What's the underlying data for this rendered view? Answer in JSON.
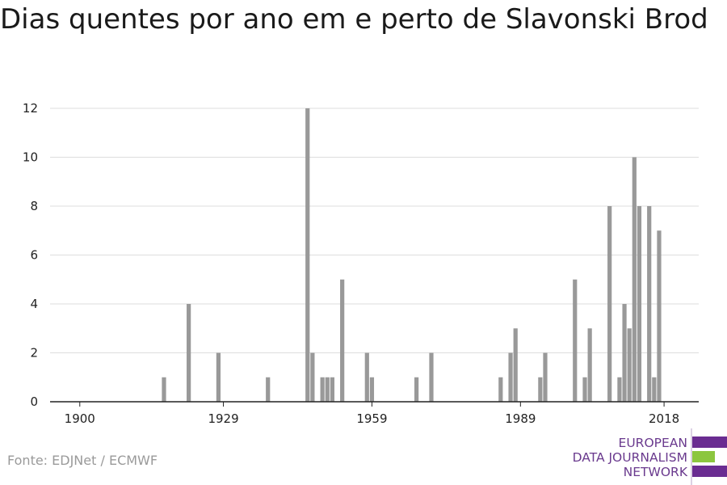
{
  "source": "Fonte: EDJNet / ECMWF",
  "logo": {
    "line1": "EUROPEAN",
    "line2": "DATA JOURNALISM",
    "line3": "NETWORK",
    "purple": "#6a2c91",
    "green": "#8cc63f"
  },
  "chart_data": {
    "type": "bar",
    "title": "Dias quentes por ano em e perto de Slavonski Brod",
    "xlabel": "",
    "ylabel": "",
    "xlim": [
      1894,
      2025
    ],
    "ylim": [
      0,
      12
    ],
    "x_ticks": [
      1900,
      1929,
      1959,
      1989,
      2018
    ],
    "y_ticks": [
      0,
      2,
      4,
      6,
      8,
      10,
      12
    ],
    "grid": true,
    "bar_color": "#999999",
    "x": [
      1917,
      1922,
      1928,
      1938,
      1946,
      1947,
      1949,
      1950,
      1951,
      1953,
      1958,
      1959,
      1968,
      1971,
      1985,
      1987,
      1988,
      1993,
      1994,
      2000,
      2002,
      2003,
      2007,
      2009,
      2010,
      2011,
      2012,
      2013,
      2015,
      2016,
      2017
    ],
    "values": [
      1,
      4,
      2,
      1,
      12,
      2,
      1,
      1,
      1,
      5,
      2,
      1,
      1,
      2,
      1,
      2,
      3,
      1,
      2,
      5,
      1,
      3,
      8,
      1,
      4,
      3,
      10,
      8,
      8,
      1,
      7
    ]
  }
}
